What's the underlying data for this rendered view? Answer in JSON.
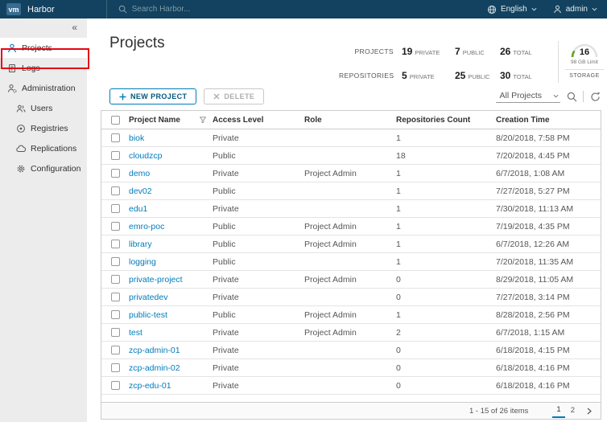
{
  "navbar": {
    "logo": "vm",
    "brand": "Harbor",
    "search_placeholder": "Search Harbor...",
    "language": "English",
    "user": "admin"
  },
  "sidebar": {
    "collapse_icon": "«",
    "items": [
      {
        "label": "Projects",
        "icon": "projects-icon",
        "active": true
      },
      {
        "label": "Logs",
        "icon": "logs-icon"
      },
      {
        "label": "Administration",
        "icon": "administration-icon",
        "expanded": true,
        "children": [
          {
            "label": "Users",
            "icon": "users-icon"
          },
          {
            "label": "Registries",
            "icon": "registries-icon"
          },
          {
            "label": "Replications",
            "icon": "replications-icon"
          },
          {
            "label": "Configuration",
            "icon": "configuration-icon"
          }
        ]
      }
    ]
  },
  "page": {
    "title": "Projects"
  },
  "stats": {
    "projects": {
      "label": "PROJECTS",
      "private": "19",
      "public": "7",
      "total": "26"
    },
    "repositories": {
      "label": "REPOSITORIES",
      "private": "5",
      "public": "25",
      "total": "30"
    },
    "units": {
      "private": "PRIVATE",
      "public": "PUBLIC",
      "total": "TOTAL"
    },
    "storage": {
      "value": "16",
      "limit": "98 GB Limit",
      "label": "STORAGE"
    }
  },
  "toolbar": {
    "new_project": "NEW PROJECT",
    "delete": "DELETE",
    "filter_value": "All Projects"
  },
  "table": {
    "columns": [
      "Project Name",
      "Access Level",
      "Role",
      "Repositories Count",
      "Creation Time"
    ],
    "rows": [
      {
        "name": "biok",
        "access": "Private",
        "role": "",
        "count": "1",
        "created": "8/20/2018, 7:58 PM"
      },
      {
        "name": "cloudzcp",
        "access": "Public",
        "role": "",
        "count": "18",
        "created": "7/20/2018, 4:45 PM"
      },
      {
        "name": "demo",
        "access": "Private",
        "role": "Project Admin",
        "count": "1",
        "created": "6/7/2018, 1:08 AM"
      },
      {
        "name": "dev02",
        "access": "Public",
        "role": "",
        "count": "1",
        "created": "7/27/2018, 5:27 PM"
      },
      {
        "name": "edu1",
        "access": "Private",
        "role": "",
        "count": "1",
        "created": "7/30/2018, 11:13 AM"
      },
      {
        "name": "emro-poc",
        "access": "Public",
        "role": "Project Admin",
        "count": "1",
        "created": "7/19/2018, 4:35 PM"
      },
      {
        "name": "library",
        "access": "Public",
        "role": "Project Admin",
        "count": "1",
        "created": "6/7/2018, 12:26 AM"
      },
      {
        "name": "logging",
        "access": "Public",
        "role": "",
        "count": "1",
        "created": "7/20/2018, 11:35 AM"
      },
      {
        "name": "private-project",
        "access": "Private",
        "role": "Project Admin",
        "count": "0",
        "created": "8/29/2018, 11:05 AM"
      },
      {
        "name": "privatedev",
        "access": "Private",
        "role": "",
        "count": "0",
        "created": "7/27/2018, 3:14 PM"
      },
      {
        "name": "public-test",
        "access": "Public",
        "role": "Project Admin",
        "count": "1",
        "created": "8/28/2018, 2:56 PM"
      },
      {
        "name": "test",
        "access": "Private",
        "role": "Project Admin",
        "count": "2",
        "created": "6/7/2018, 1:15 AM"
      },
      {
        "name": "zcp-admin-01",
        "access": "Private",
        "role": "",
        "count": "0",
        "created": "6/18/2018, 4:15 PM"
      },
      {
        "name": "zcp-admin-02",
        "access": "Private",
        "role": "",
        "count": "0",
        "created": "6/18/2018, 4:16 PM"
      },
      {
        "name": "zcp-edu-01",
        "access": "Private",
        "role": "",
        "count": "0",
        "created": "6/18/2018, 4:16 PM"
      }
    ]
  },
  "footer": {
    "range": "1 - 15 of 26 items",
    "pages": [
      "1",
      "2"
    ],
    "current_page": "1"
  }
}
